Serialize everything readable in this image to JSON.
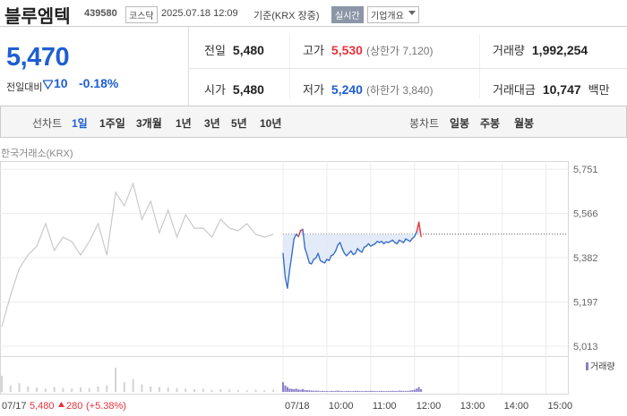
{
  "header": {
    "name": "블루엠텍",
    "code": "439580",
    "market": "코스닥",
    "datetime": "2025.07.18 12:09",
    "basis": "기준(KRX 장중)",
    "realtime": "실시간",
    "company": "기업개요"
  },
  "quote": {
    "price": "5,470",
    "change_label": "전일대비",
    "change": "10",
    "change_pct": "-0.18%"
  },
  "stats": [
    {
      "label": "전일",
      "value": "5,480"
    },
    {
      "label": "고가",
      "value": "5,530",
      "note": "(상한가 7,120)"
    },
    {
      "label": "거래량",
      "value": "1,992,254"
    },
    {
      "label": "시가",
      "value": "5,480"
    },
    {
      "label": "저가",
      "value": "5,240",
      "note": "(하한가 3,840)"
    },
    {
      "label": "거래대금",
      "value": "10,747",
      "unit": "백만"
    }
  ],
  "tabs": {
    "line_label": "선차트",
    "line_periods": [
      "1일",
      "1주일",
      "3개월",
      "1년",
      "3년",
      "5년",
      "10년"
    ],
    "candle_label": "봉차트",
    "candle_periods": [
      "일봉",
      "주봉",
      "월봉"
    ]
  },
  "chart_data": {
    "type": "line",
    "source": "한국거래소(KRX)",
    "ylim": [
      4983,
      5785
    ],
    "yticks": [
      {
        "value": 5751,
        "label": "5,751"
      },
      {
        "value": 5566,
        "label": "5,566"
      },
      {
        "value": 5382,
        "label": "5,382"
      },
      {
        "value": 5197,
        "label": "5,197"
      },
      {
        "value": 5013,
        "label": "5,013"
      }
    ],
    "xlim": [
      "09:00",
      "15:30"
    ],
    "xticks": [
      {
        "value": "09:00",
        "label": "07/18"
      },
      "10:00",
      "11:00",
      "12:00",
      "13:00",
      "14:00",
      "15:00"
    ],
    "prev_close": 5480,
    "colors": {
      "line": "#3a6fc7",
      "up": "#e8333a",
      "prev": "#c9c9c9",
      "fill": "#dde7f6",
      "volume": "#d3d3d3",
      "volume_today": "#8a7fc9"
    },
    "prev_day": {
      "date": "07/17",
      "close": "5,480",
      "change": "280",
      "change_pct": "(+5.38%)",
      "values": [
        5095,
        5225,
        5337,
        5393,
        5430,
        5524,
        5412,
        5468,
        5449,
        5393,
        5449,
        5524,
        5393,
        5654,
        5598,
        5691,
        5542,
        5617,
        5486,
        5580,
        5468,
        5561,
        5505,
        5505,
        5468,
        5542,
        5505,
        5494,
        5524,
        5479,
        5468,
        5479
      ],
      "volume": [
        150000,
        60000,
        80000,
        50000,
        40000,
        30000,
        45000,
        35000,
        30000,
        40000,
        35000,
        50000,
        60000,
        225000,
        90000,
        120000,
        70000,
        50000,
        45000,
        40000,
        35000,
        30000,
        25000,
        30000,
        20000,
        25000,
        20000,
        18000,
        15000,
        20000,
        15000,
        20000
      ]
    },
    "x": [
      "09:00",
      "09:03",
      "09:06",
      "09:09",
      "09:12",
      "09:15",
      "09:18",
      "09:21",
      "09:24",
      "09:27",
      "09:30",
      "09:33",
      "09:36",
      "09:39",
      "09:42",
      "09:45",
      "09:48",
      "09:51",
      "09:54",
      "09:57",
      "10:00",
      "10:03",
      "10:06",
      "10:09",
      "10:12",
      "10:15",
      "10:18",
      "10:21",
      "10:24",
      "10:27",
      "10:30",
      "10:33",
      "10:36",
      "10:39",
      "10:42",
      "10:45",
      "10:48",
      "10:51",
      "10:54",
      "10:57",
      "11:00",
      "11:03",
      "11:06",
      "11:09",
      "11:12",
      "11:15",
      "11:18",
      "11:21",
      "11:24",
      "11:27",
      "11:30",
      "11:33",
      "11:36",
      "11:39",
      "11:42",
      "11:45",
      "11:48",
      "11:51",
      "11:54",
      "11:57",
      "12:00",
      "12:03",
      "12:06",
      "12:09"
    ],
    "values": [
      5400,
      5300,
      5255,
      5330,
      5393,
      5460,
      5480,
      5470,
      5495,
      5500,
      5420,
      5393,
      5360,
      5356,
      5375,
      5380,
      5400,
      5370,
      5365,
      5360,
      5375,
      5370,
      5390,
      5395,
      5410,
      5435,
      5445,
      5420,
      5400,
      5390,
      5400,
      5410,
      5395,
      5400,
      5420,
      5410,
      5405,
      5425,
      5430,
      5440,
      5430,
      5435,
      5440,
      5450,
      5445,
      5450,
      5440,
      5448,
      5445,
      5450,
      5455,
      5445,
      5440,
      5455,
      5450,
      5445,
      5460,
      5455,
      5450,
      5462,
      5470,
      5490,
      5530,
      5470
    ],
    "volume_label": "거래량",
    "volume_ylim": [
      0,
      300000
    ],
    "volume": [
      90000,
      60000,
      45000,
      30000,
      28000,
      25000,
      30000,
      22000,
      20000,
      25000,
      18000,
      15000,
      15000,
      12000,
      10000,
      12000,
      10000,
      8000,
      9000,
      8000,
      8000,
      7000,
      9000,
      8000,
      10000,
      12000,
      9000,
      8000,
      7000,
      8000,
      9000,
      7000,
      8000,
      10000,
      9000,
      8000,
      7000,
      8000,
      9000,
      8000,
      10000,
      9000,
      8000,
      7000,
      8000,
      9000,
      8000,
      7000,
      9000,
      8000,
      10000,
      9000,
      8000,
      12000,
      10000,
      9000,
      8000,
      10000,
      12000,
      15000,
      20000,
      30000,
      45000,
      25000
    ]
  }
}
